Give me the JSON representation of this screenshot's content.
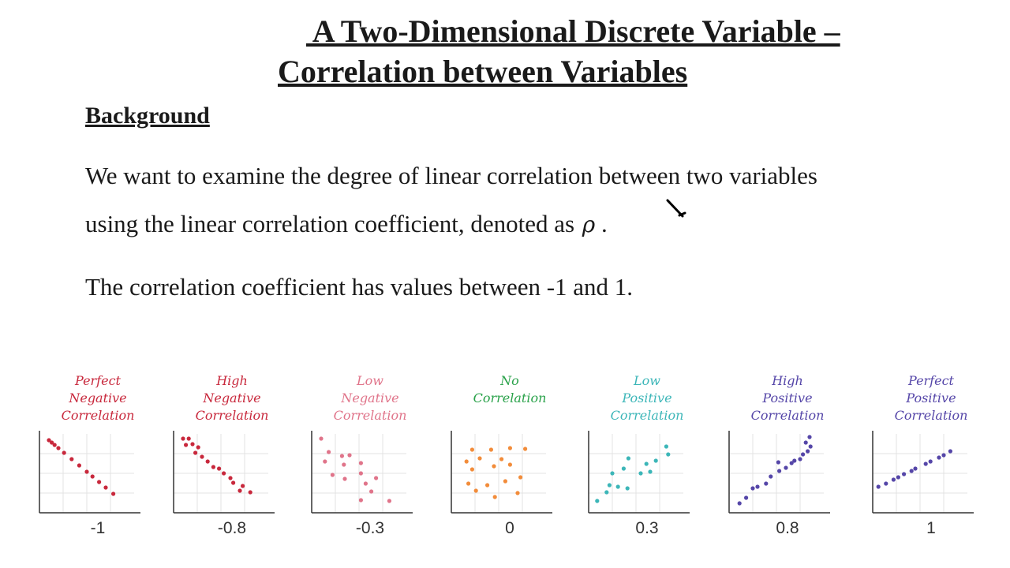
{
  "title": {
    "line1": " A Two-Dimensional Discrete Variable –",
    "line2": "Correlation between Variables"
  },
  "section": {
    "heading": "Background"
  },
  "body": {
    "line1": "We want to examine the degree of linear correlation between two variables",
    "line2": "using the linear correlation coefficient, denoted as",
    "symbol": "ρ",
    "symbol_suffix": " .",
    "line3": "The correlation coefficient has values between -1 and 1."
  },
  "cursor": {
    "icon": "pen-cursor-icon"
  },
  "chart_data": [
    {
      "type": "scatter",
      "label": [
        "Perfect",
        "Negative",
        "Correlation"
      ],
      "value_label": "-1",
      "color": "#c8283c",
      "points": [
        [
          1.0,
          9.2
        ],
        [
          1.3,
          8.9
        ],
        [
          1.6,
          8.6
        ],
        [
          2.0,
          8.2
        ],
        [
          2.6,
          7.6
        ],
        [
          3.4,
          6.8
        ],
        [
          4.2,
          6.0
        ],
        [
          5.0,
          5.2
        ],
        [
          5.6,
          4.6
        ],
        [
          6.3,
          3.9
        ],
        [
          7.0,
          3.2
        ],
        [
          7.8,
          2.4
        ]
      ]
    },
    {
      "type": "scatter",
      "label": [
        "High",
        "Negative",
        "Correlation"
      ],
      "value_label": "-0.8",
      "color": "#c8283c",
      "points": [
        [
          1.0,
          9.4
        ],
        [
          1.6,
          9.4
        ],
        [
          1.3,
          8.6
        ],
        [
          2.0,
          8.7
        ],
        [
          2.6,
          8.3
        ],
        [
          2.3,
          7.6
        ],
        [
          3.0,
          7.1
        ],
        [
          3.6,
          6.5
        ],
        [
          4.2,
          5.8
        ],
        [
          4.8,
          5.6
        ],
        [
          5.3,
          5.0
        ],
        [
          6.0,
          4.4
        ],
        [
          6.3,
          3.8
        ],
        [
          7.3,
          3.4
        ],
        [
          8.1,
          2.6
        ],
        [
          7.0,
          2.8
        ]
      ]
    },
    {
      "type": "scatter",
      "label": [
        "Low",
        "Negative",
        "Correlation"
      ],
      "value_label": "-0.3",
      "color": "#e0748a",
      "points": [
        [
          1.0,
          9.4
        ],
        [
          1.8,
          7.7
        ],
        [
          3.2,
          7.2
        ],
        [
          4.0,
          7.3
        ],
        [
          1.4,
          6.5
        ],
        [
          3.4,
          6.1
        ],
        [
          5.2,
          6.3
        ],
        [
          2.2,
          4.8
        ],
        [
          3.5,
          4.3
        ],
        [
          5.2,
          5.0
        ],
        [
          5.7,
          3.7
        ],
        [
          6.8,
          4.4
        ],
        [
          6.3,
          2.7
        ],
        [
          8.2,
          1.5
        ],
        [
          5.2,
          1.6
        ]
      ]
    },
    {
      "type": "scatter",
      "label": [
        "No",
        "Correlation"
      ],
      "value_label": "0",
      "color": "#f28c3a",
      "label_color": "#2aa24a",
      "points": [
        [
          2.2,
          8.0
        ],
        [
          4.2,
          8.0
        ],
        [
          6.2,
          8.2
        ],
        [
          7.8,
          8.1
        ],
        [
          1.6,
          6.5
        ],
        [
          3.0,
          6.9
        ],
        [
          5.3,
          6.8
        ],
        [
          2.2,
          5.5
        ],
        [
          4.5,
          5.9
        ],
        [
          6.2,
          6.1
        ],
        [
          1.8,
          3.7
        ],
        [
          3.8,
          3.5
        ],
        [
          5.7,
          4.0
        ],
        [
          7.3,
          4.5
        ],
        [
          2.6,
          2.8
        ],
        [
          4.6,
          2.0
        ],
        [
          7.0,
          2.5
        ]
      ]
    },
    {
      "type": "scatter",
      "label": [
        "Low",
        "Positive",
        "Correlation"
      ],
      "value_label": "0.3",
      "color": "#3cb6b8",
      "points": [
        [
          0.9,
          1.5
        ],
        [
          1.9,
          2.6
        ],
        [
          2.2,
          3.5
        ],
        [
          3.1,
          3.3
        ],
        [
          4.1,
          3.1
        ],
        [
          2.5,
          5.0
        ],
        [
          3.7,
          5.6
        ],
        [
          5.5,
          5.0
        ],
        [
          4.2,
          6.9
        ],
        [
          6.1,
          6.2
        ],
        [
          7.1,
          6.6
        ],
        [
          6.5,
          5.2
        ],
        [
          8.2,
          8.4
        ],
        [
          8.4,
          7.4
        ]
      ]
    },
    {
      "type": "scatter",
      "label": [
        "High",
        "Positive",
        "Correlation"
      ],
      "value_label": "0.8",
      "color": "#5546a8",
      "points": [
        [
          1.1,
          1.2
        ],
        [
          1.8,
          1.9
        ],
        [
          2.5,
          3.1
        ],
        [
          3.0,
          3.3
        ],
        [
          3.9,
          3.7
        ],
        [
          4.4,
          4.6
        ],
        [
          5.3,
          5.3
        ],
        [
          6.0,
          5.7
        ],
        [
          5.2,
          6.4
        ],
        [
          6.6,
          6.3
        ],
        [
          6.9,
          6.6
        ],
        [
          7.5,
          6.8
        ],
        [
          7.8,
          7.4
        ],
        [
          8.3,
          7.8
        ],
        [
          8.6,
          8.4
        ],
        [
          8.1,
          8.9
        ],
        [
          8.5,
          9.6
        ]
      ]
    },
    {
      "type": "scatter",
      "label": [
        "Perfect",
        "Positive",
        "Correlation"
      ],
      "value_label": "1",
      "color": "#5546a8",
      "points": [
        [
          0.6,
          3.3
        ],
        [
          1.4,
          3.7
        ],
        [
          2.2,
          4.2
        ],
        [
          2.7,
          4.5
        ],
        [
          3.3,
          4.9
        ],
        [
          4.1,
          5.3
        ],
        [
          4.5,
          5.6
        ],
        [
          5.6,
          6.2
        ],
        [
          6.1,
          6.5
        ],
        [
          7.0,
          7.0
        ],
        [
          7.5,
          7.3
        ],
        [
          8.2,
          7.8
        ]
      ]
    }
  ]
}
